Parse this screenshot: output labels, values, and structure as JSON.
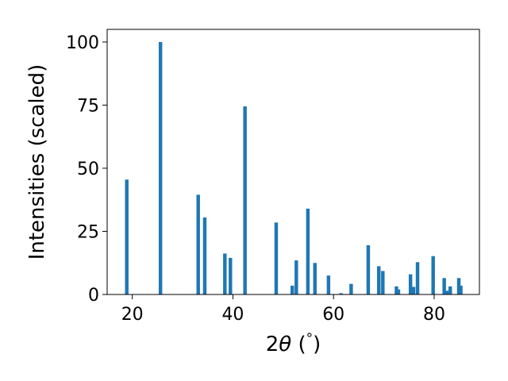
{
  "chart_data": {
    "type": "bar",
    "title": "",
    "xlabel_main": "2",
    "xlabel_theta": "θ",
    "xlabel_unit_open": " (",
    "xlabel_unit_symbol": "°",
    "xlabel_unit_close": ")",
    "ylabel": "Intensities (scaled)",
    "xlim": [
      15,
      89
    ],
    "ylim": [
      0,
      105
    ],
    "xticks": [
      20,
      40,
      60,
      80
    ],
    "yticks": [
      0,
      25,
      50,
      75,
      100
    ],
    "grid": false,
    "bar_color": "#1f77b4",
    "bar_width": 0.7,
    "x": [
      18.9,
      25.6,
      33.1,
      34.4,
      38.4,
      39.5,
      42.4,
      48.6,
      51.8,
      52.6,
      54.9,
      56.3,
      59.0,
      61.5,
      63.5,
      66.9,
      69.0,
      69.8,
      72.5,
      72.9,
      75.3,
      75.9,
      76.7,
      79.8,
      82.0,
      82.5,
      83.2,
      84.9,
      85.3
    ],
    "values": [
      45.5,
      100,
      39.5,
      30.5,
      16.2,
      14.5,
      74.5,
      28.5,
      3.5,
      13.5,
      34,
      12.5,
      7.5,
      0.5,
      4.2,
      19.5,
      11.2,
      9.3,
      3.2,
      2.0,
      8.0,
      3.0,
      12.8,
      15.2,
      6.5,
      1.5,
      3.2,
      6.5,
      3.5
    ]
  }
}
